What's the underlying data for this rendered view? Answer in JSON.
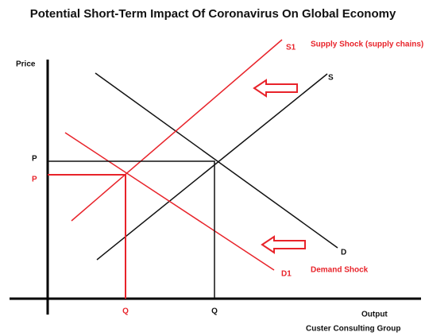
{
  "title": "Potential Short-Term Impact Of Coronavirus On Global Economy",
  "axes": {
    "y_label": "Price",
    "x_label": "Output"
  },
  "curves": {
    "supply": "S",
    "demand": "D",
    "supply_shifted": "S1",
    "demand_shifted": "D1"
  },
  "annotations": {
    "supply_shock": "Supply Shock (supply chains)",
    "demand_shock": "Demand Shock"
  },
  "equilibrium": {
    "price": "P",
    "quantity": "Q",
    "new_price": "P",
    "new_quantity": "Q"
  },
  "footer": "Custer Consulting Group"
}
